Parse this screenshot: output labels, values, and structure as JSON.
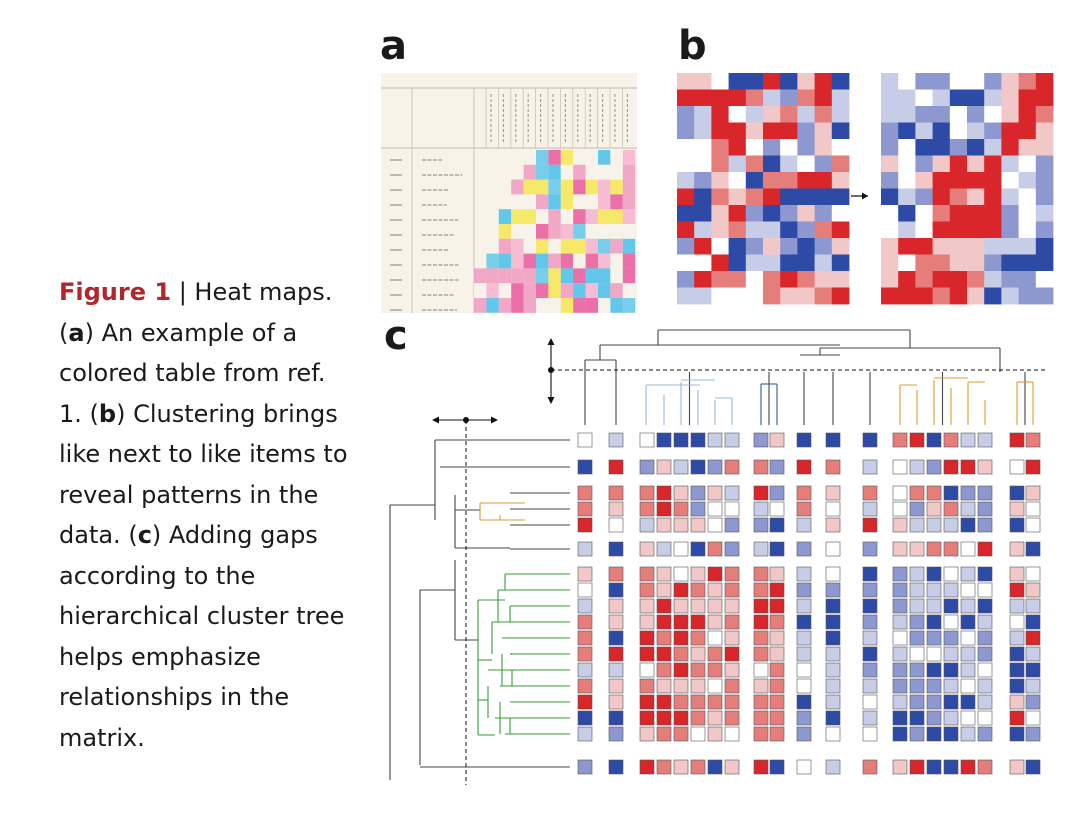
{
  "caption": {
    "figure_label": "Figure 1",
    "title": " | Heat maps.",
    "p1_open": "(",
    "a": "a",
    "p1_text": ") An example of a colored table from ref. 1. (",
    "b": "b",
    "p2_text": ") Clustering brings like next to like items to reveal patterns in the data. (",
    "c": "c",
    "p3_text": ") Adding gaps according to the hierarchical cluster tree helps emphasize relationships in the matrix."
  },
  "panels": {
    "a": "a",
    "b": "b",
    "c": "c"
  },
  "colors": {
    "red": "#d8262a",
    "blue": "#2d4aa6",
    "light_red": "#f2c7c7",
    "light_blue": "#c7cde7",
    "mid_red": "#e57d7a",
    "mid_blue": "#8c98cf",
    "green_tree": "#3a9a3a",
    "orange_tree": "#e09a30",
    "light_blue_tree": "#9bb8dc",
    "dark_blue_tree": "#2f5d9a",
    "table_cyan": "#2fb7e8",
    "table_magenta": "#e6428f",
    "table_yellow": "#f4e33b",
    "table_pink": "#f4a8c8"
  }
}
